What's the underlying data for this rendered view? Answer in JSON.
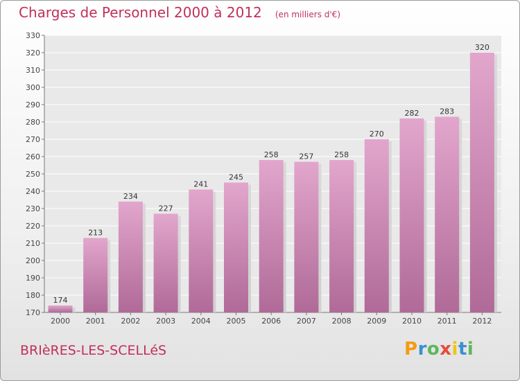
{
  "header": {
    "title": "Charges de Personnel 2000 à 2012",
    "subtitle": "(en milliers d'€)"
  },
  "footer": {
    "commune": "BRIèRES-LES-SCELLéS",
    "logo": {
      "letters": [
        "P",
        "r",
        "o",
        "x",
        "i",
        "t",
        "i"
      ],
      "colors": [
        "#f39c12",
        "#3a8fd0",
        "#5cb85c",
        "#e74c3c",
        "#f1c40f",
        "#3a8fd0",
        "#5cb85c"
      ]
    }
  },
  "chart_data": {
    "type": "bar",
    "categories": [
      "2000",
      "2001",
      "2002",
      "2003",
      "2004",
      "2005",
      "2006",
      "2007",
      "2008",
      "2009",
      "2010",
      "2011",
      "2012"
    ],
    "values": [
      174,
      213,
      234,
      227,
      241,
      245,
      258,
      257,
      258,
      270,
      282,
      283,
      320
    ],
    "data_labels": [
      "174",
      "213",
      "234",
      "227",
      "241",
      "245",
      "258",
      "257",
      "258",
      "270",
      "282",
      "283",
      "320"
    ],
    "title": "Charges de Personnel 2000 à 2012",
    "subtitle": "(en milliers d'€)",
    "xlabel": "",
    "ylabel": "",
    "ylim": [
      170,
      330
    ],
    "yticks": [
      170,
      180,
      190,
      200,
      210,
      220,
      230,
      240,
      250,
      260,
      270,
      280,
      290,
      300,
      310,
      320,
      330
    ],
    "grid": true,
    "legend": "none",
    "colors": {
      "bar_top": "#e2a6cc",
      "bar_bottom": "#b06a98",
      "grid": "#ffffff",
      "title": "#c0305a"
    }
  }
}
